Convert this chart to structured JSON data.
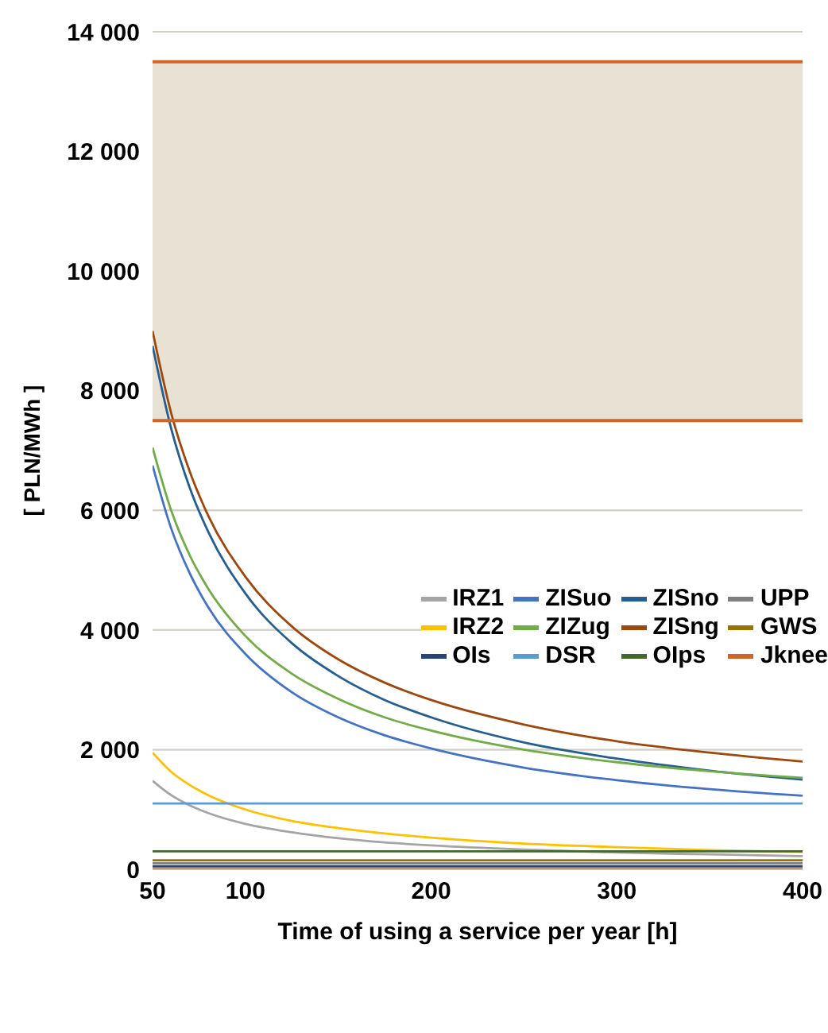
{
  "chart_data": {
    "type": "line",
    "xlabel": "Time of using a service per year [h]",
    "ylabel": "[ PLN/MWh ]",
    "x": [
      50,
      60,
      70,
      80,
      100,
      125,
      150,
      175,
      200,
      250,
      300,
      350,
      400
    ],
    "xlim": [
      50,
      400
    ],
    "xticks": [
      50,
      100,
      200,
      300,
      400
    ],
    "ylim": [
      0,
      14000
    ],
    "yticks": [
      {
        "value": 0,
        "label": "0"
      },
      {
        "value": 2000,
        "label": "2 000"
      },
      {
        "value": 4000,
        "label": "4 000"
      },
      {
        "value": 6000,
        "label": "6 000"
      },
      {
        "value": 8000,
        "label": "8 000"
      },
      {
        "value": 10000,
        "label": "10 000"
      },
      {
        "value": 12000,
        "label": "12 000"
      },
      {
        "value": 14000,
        "label": "14 000"
      }
    ],
    "grid": "y",
    "legend": "right",
    "marker": "none",
    "line_style": "solid",
    "bands": [
      {
        "axis": "y",
        "from": 7500,
        "to": 13500,
        "color": "#e8e2d4"
      }
    ],
    "ref_lines": [
      {
        "axis": "y",
        "value": 7500,
        "color": "#d0652a"
      },
      {
        "axis": "y",
        "value": 13500,
        "color": "#d0652a"
      }
    ],
    "series": [
      {
        "name": "IRZ1",
        "color": "#a5a5a5",
        "values": [
          1480,
          1240,
          1070,
          940,
          760,
          620,
          520,
          450,
          400,
          330,
          280,
          250,
          220
        ]
      },
      {
        "name": "ZISuo",
        "color": "#4472c4",
        "values": [
          6750,
          5700,
          4950,
          4380,
          3600,
          2960,
          2540,
          2240,
          2020,
          1700,
          1490,
          1340,
          1230
        ]
      },
      {
        "name": "ZISno",
        "color": "#255e91",
        "values": [
          8750,
          7370,
          6380,
          5640,
          4610,
          3780,
          3230,
          2830,
          2540,
          2120,
          1850,
          1650,
          1500
        ]
      },
      {
        "name": "UPP",
        "color": "#7f7f7f",
        "values": [
          100,
          100,
          100,
          100,
          100,
          100,
          100,
          100,
          100,
          100,
          100,
          100,
          100
        ]
      },
      {
        "name": "IRZ2",
        "color": "#ffc000",
        "values": [
          1950,
          1630,
          1410,
          1240,
          1000,
          810,
          690,
          600,
          530,
          430,
          370,
          320,
          290
        ]
      },
      {
        "name": "ZIZug",
        "color": "#70ad47",
        "values": [
          7050,
          6000,
          5250,
          4690,
          3900,
          3270,
          2850,
          2540,
          2320,
          2000,
          1790,
          1640,
          1530
        ]
      },
      {
        "name": "ZISng",
        "color": "#9e480e",
        "values": [
          9000,
          7630,
          6650,
          5910,
          4890,
          4060,
          3510,
          3120,
          2830,
          2420,
          2140,
          1950,
          1800
        ]
      },
      {
        "name": "GWS",
        "color": "#997300",
        "values": [
          150,
          150,
          150,
          150,
          150,
          150,
          150,
          150,
          150,
          150,
          150,
          150,
          150
        ]
      },
      {
        "name": "OIs",
        "color": "#264478",
        "values": [
          50,
          50,
          50,
          50,
          50,
          50,
          50,
          50,
          50,
          50,
          50,
          50,
          50
        ]
      },
      {
        "name": "DSR",
        "color": "#5b9bd5",
        "values": [
          1100,
          1100,
          1100,
          1100,
          1100,
          1100,
          1100,
          1100,
          1100,
          1100,
          1100,
          1100,
          1100
        ]
      },
      {
        "name": "OIps",
        "color": "#43682b",
        "values": [
          300,
          300,
          300,
          300,
          300,
          300,
          300,
          300,
          300,
          300,
          300,
          300,
          300
        ]
      },
      {
        "name": "Jknee",
        "color": "#d0652a",
        "values": [
          0,
          0,
          0,
          0,
          0,
          0,
          0,
          0,
          0,
          0,
          0,
          0,
          0
        ]
      }
    ]
  }
}
